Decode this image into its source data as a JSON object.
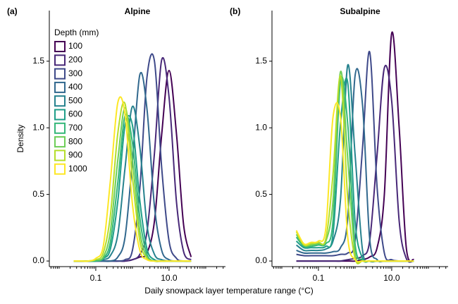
{
  "chart_data": [
    {
      "type": "line",
      "panel_label": "(a)",
      "title": "Alpine",
      "ylabel": "Density",
      "xlabel": "Daily snowpack layer temperature range (°C)",
      "legend_title": "Depth (mm)",
      "legend": true,
      "log_x": true,
      "x": [
        0.025,
        0.04,
        0.063,
        0.1,
        0.16,
        0.25,
        0.4,
        0.63,
        1,
        1.6,
        2.5,
        4,
        6.3,
        10,
        16,
        25,
        40
      ],
      "xlim": [
        0.0054,
        347
      ],
      "ylim": [
        -0.042,
        1.88
      ],
      "xticks": [
        0.1,
        {
          "value": 10,
          "label": "10.0"
        }
      ],
      "xminor_ticks": [
        0.006,
        0.007,
        0.008,
        0.009,
        0.01,
        0.02,
        0.03,
        0.04,
        0.05,
        0.06,
        0.07,
        0.08,
        0.09,
        0.2,
        0.3,
        0.4,
        0.5,
        0.6,
        0.7,
        0.8,
        0.9,
        1,
        2,
        3,
        4,
        5,
        6,
        7,
        8,
        9,
        20,
        30,
        40,
        50,
        60,
        70,
        80,
        90,
        100,
        200,
        300
      ],
      "yticks": [
        {
          "value": 0,
          "label": "0.0"
        },
        {
          "value": 0.5,
          "label": "0.5"
        },
        {
          "value": 1,
          "label": "1.0"
        },
        {
          "value": 1.5,
          "label": "1.5"
        }
      ],
      "series": [
        {
          "name": "100",
          "color": "#440154",
          "values": [
            0,
            0,
            0,
            0,
            0,
            0,
            0,
            0,
            0.01,
            0.03,
            0.06,
            0.3,
            0.95,
            1.43,
            0.95,
            0.27,
            0.03
          ]
        },
        {
          "name": "200",
          "color": "#482878",
          "values": [
            0,
            0,
            0,
            0,
            0,
            0,
            0,
            0,
            0.01,
            0.05,
            0.22,
            0.81,
            1.51,
            1.23,
            0.44,
            0.07,
            0.01
          ]
        },
        {
          "name": "300",
          "color": "#3e4989",
          "values": [
            0,
            0,
            0,
            0,
            0,
            0,
            0,
            0.01,
            0.08,
            0.55,
            1.38,
            1.5,
            0.7,
            0.15,
            0.02,
            0,
            0
          ]
        },
        {
          "name": "400",
          "color": "#31688e",
          "values": [
            0,
            0,
            0,
            0,
            0,
            0,
            0.03,
            0.18,
            0.75,
            1.4,
            1.14,
            0.41,
            0.08,
            0.01,
            0,
            0,
            0
          ]
        },
        {
          "name": "500",
          "color": "#26828e",
          "values": [
            0,
            0,
            0,
            0,
            0.01,
            0.04,
            0.2,
            0.7,
            1.16,
            0.85,
            0.27,
            0.05,
            0.01,
            0,
            0,
            0,
            0
          ]
        },
        {
          "name": "600",
          "color": "#1f9e89",
          "values": [
            0,
            0,
            0,
            0,
            0.02,
            0.09,
            0.45,
            1.02,
            1.02,
            0.45,
            0.09,
            0.01,
            0,
            0,
            0,
            0,
            0
          ]
        },
        {
          "name": "700",
          "color": "#35b779",
          "values": [
            0,
            0,
            0,
            0,
            0.02,
            0.14,
            0.59,
            1.09,
            0.89,
            0.32,
            0.05,
            0,
            0,
            0,
            0,
            0,
            0
          ]
        },
        {
          "name": "800",
          "color": "#6ece58",
          "values": [
            0,
            0,
            0,
            0.01,
            0.03,
            0.22,
            0.76,
            1.15,
            0.76,
            0.22,
            0.03,
            0,
            0,
            0,
            0,
            0,
            0
          ]
        },
        {
          "name": "900",
          "color": "#b5de2b",
          "values": [
            0,
            0,
            0,
            0.01,
            0.06,
            0.34,
            0.96,
            1.18,
            0.63,
            0.15,
            0.02,
            0,
            0,
            0,
            0,
            0,
            0
          ]
        },
        {
          "name": "1000",
          "color": "#fde725",
          "values": [
            0,
            0,
            0,
            0.02,
            0.11,
            0.6,
            1.19,
            1.1,
            0.43,
            0.08,
            0.01,
            0,
            0,
            0,
            0,
            0,
            0
          ]
        }
      ]
    },
    {
      "type": "line",
      "panel_label": "(b)",
      "title": "Subalpine",
      "legend": false,
      "log_x": true,
      "x": [
        0.025,
        0.04,
        0.063,
        0.1,
        0.16,
        0.25,
        0.4,
        0.63,
        1,
        1.6,
        2.5,
        4,
        6.3,
        10,
        16,
        25,
        40
      ],
      "xlim": [
        0.0054,
        347
      ],
      "ylim": [
        -0.042,
        1.88
      ],
      "xticks": [
        0.1,
        {
          "value": 10,
          "label": "10.0"
        }
      ],
      "xminor_ticks": [
        0.006,
        0.007,
        0.008,
        0.009,
        0.01,
        0.02,
        0.03,
        0.04,
        0.05,
        0.06,
        0.07,
        0.08,
        0.09,
        0.2,
        0.3,
        0.4,
        0.5,
        0.6,
        0.7,
        0.8,
        0.9,
        1,
        2,
        3,
        4,
        5,
        6,
        7,
        8,
        9,
        20,
        30,
        40,
        50,
        60,
        70,
        80,
        90,
        100,
        200,
        300
      ],
      "yticks": [
        {
          "value": 0,
          "label": "0.0"
        },
        {
          "value": 0.5,
          "label": "0.5"
        },
        {
          "value": 1,
          "label": "1.0"
        },
        {
          "value": 1.5,
          "label": "1.5"
        }
      ],
      "series": [
        {
          "color": "#440154",
          "values": [
            0,
            0,
            0,
            0,
            0,
            0,
            0,
            0,
            0,
            0.01,
            0.03,
            0.1,
            0.5,
            1.71,
            1.0,
            0.1,
            0.01
          ]
        },
        {
          "color": "#482878",
          "values": [
            0,
            0,
            0,
            0,
            0,
            0,
            0,
            0.01,
            0.02,
            0.04,
            0.15,
            0.8,
            1.45,
            1.2,
            0.3,
            0.02,
            0
          ]
        },
        {
          "color": "#3e4989",
          "values": [
            0.05,
            0.04,
            0.04,
            0.04,
            0.04,
            0.04,
            0.05,
            0.06,
            0.15,
            0.85,
            1.57,
            0.55,
            0.06,
            0.01,
            0,
            0,
            0
          ]
        },
        {
          "color": "#31688e",
          "values": [
            0.08,
            0.06,
            0.06,
            0.06,
            0.06,
            0.07,
            0.1,
            0.32,
            1.39,
            1.17,
            0.17,
            0.01,
            0,
            0,
            0,
            0,
            0
          ]
        },
        {
          "color": "#26828e",
          "values": [
            0.12,
            0.08,
            0.08,
            0.08,
            0.09,
            0.15,
            0.46,
            1.47,
            0.8,
            0.08,
            0,
            0,
            0,
            0,
            0,
            0,
            0
          ]
        },
        {
          "color": "#1f9e89",
          "values": [
            0.15,
            0.1,
            0.1,
            0.1,
            0.11,
            0.2,
            1.03,
            1.34,
            0.3,
            0.02,
            0,
            0,
            0,
            0,
            0,
            0,
            0
          ]
        },
        {
          "color": "#35b779",
          "values": [
            0.18,
            0.11,
            0.11,
            0.12,
            0.13,
            0.3,
            1.35,
            1.03,
            0.13,
            0.01,
            0,
            0,
            0,
            0,
            0,
            0,
            0
          ]
        },
        {
          "color": "#6ece58",
          "values": [
            0.2,
            0.12,
            0.12,
            0.13,
            0.15,
            0.45,
            1.42,
            0.77,
            0.06,
            0,
            0,
            0,
            0,
            0,
            0,
            0,
            0
          ]
        },
        {
          "color": "#b5de2b",
          "values": [
            0.22,
            0.12,
            0.13,
            0.14,
            0.17,
            0.65,
            1.39,
            0.47,
            0.02,
            0,
            0,
            0,
            0,
            0,
            0,
            0,
            0
          ]
        },
        {
          "color": "#fde725",
          "values": [
            0.23,
            0.13,
            0.14,
            0.15,
            0.25,
            1.08,
            1.08,
            0.18,
            0.01,
            0,
            0,
            0,
            0,
            0,
            0,
            0,
            0
          ]
        }
      ]
    }
  ]
}
